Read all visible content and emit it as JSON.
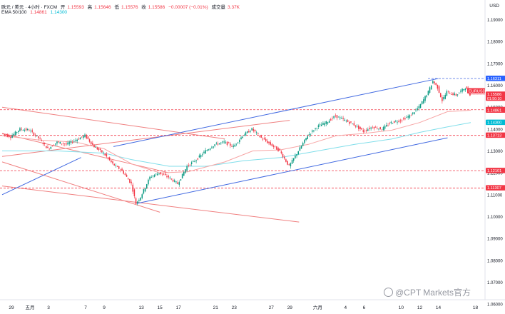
{
  "header": {
    "symbol": "欧元 / 美元 · 4小时 · FXCM",
    "open_label": "开",
    "open": "1.15593",
    "high_label": "高",
    "high": "1.15646",
    "low_label": "低",
    "low": "1.15576",
    "close_label": "收",
    "close": "1.15586",
    "change": "−0.00007 (−0.01%)",
    "volume_label": "成交量",
    "volume": "3.37K",
    "ema_label": "EMA 50/100",
    "ema50": "1.14861",
    "ema100": "1.14300"
  },
  "currency_label": "USD",
  "watermark": "@CPT Markets官方",
  "colors": {
    "up": "#089981",
    "down": "#f23645",
    "ema50": "#f7a5a5",
    "ema100": "#80deea",
    "channel": "#4169e1",
    "trendline": "#f08080"
  },
  "chart_data": {
    "type": "candlestick",
    "y_axis": {
      "range": [
        1.062,
        1.199
      ],
      "ticks": [
        "1.19000",
        "1.18000",
        "1.17000",
        "1.16000",
        "1.15000",
        "1.14000",
        "1.13000",
        "1.12000",
        "1.11000",
        "1.10000",
        "1.09000",
        "1.08000",
        "1.07000",
        "1.06000"
      ]
    },
    "x_axis": {
      "range_days": [
        0,
        50.5
      ],
      "ticks": [
        {
          "label": "29",
          "day": 1
        },
        {
          "label": "五月",
          "day": 3
        },
        {
          "label": "3",
          "day": 5
        },
        {
          "label": "7",
          "day": 9
        },
        {
          "label": "9",
          "day": 11
        },
        {
          "label": "13",
          "day": 15
        },
        {
          "label": "15",
          "day": 17
        },
        {
          "label": "17",
          "day": 19
        },
        {
          "label": "21",
          "day": 23
        },
        {
          "label": "23",
          "day": 25
        },
        {
          "label": "27",
          "day": 29
        },
        {
          "label": "29",
          "day": 31
        },
        {
          "label": "六月",
          "day": 34
        },
        {
          "label": "4",
          "day": 37
        },
        {
          "label": "6",
          "day": 39
        },
        {
          "label": "10",
          "day": 43
        },
        {
          "label": "12",
          "day": 45
        },
        {
          "label": "14",
          "day": 47
        },
        {
          "label": "18",
          "day": 51
        }
      ]
    },
    "price_path": [
      [
        0,
        1.138
      ],
      [
        1,
        1.1365
      ],
      [
        2,
        1.14
      ],
      [
        3,
        1.1395
      ],
      [
        4,
        1.136
      ],
      [
        5,
        1.131
      ],
      [
        6,
        1.134
      ],
      [
        7,
        1.133
      ],
      [
        8,
        1.135
      ],
      [
        9,
        1.137
      ],
      [
        10,
        1.132
      ],
      [
        11,
        1.129
      ],
      [
        12,
        1.124
      ],
      [
        13,
        1.121
      ],
      [
        14,
        1.115
      ],
      [
        14.5,
        1.106
      ],
      [
        15,
        1.109
      ],
      [
        16,
        1.118
      ],
      [
        17,
        1.12
      ],
      [
        18,
        1.118
      ],
      [
        19,
        1.115
      ],
      [
        20,
        1.123
      ],
      [
        21,
        1.126
      ],
      [
        22,
        1.13
      ],
      [
        23,
        1.133
      ],
      [
        24,
        1.134
      ],
      [
        25,
        1.132
      ],
      [
        26,
        1.137
      ],
      [
        27,
        1.14
      ],
      [
        28,
        1.136
      ],
      [
        29,
        1.133
      ],
      [
        30,
        1.13
      ],
      [
        31,
        1.123
      ],
      [
        32,
        1.13
      ],
      [
        33,
        1.137
      ],
      [
        34,
        1.141
      ],
      [
        35,
        1.143
      ],
      [
        36,
        1.146
      ],
      [
        37,
        1.144
      ],
      [
        38,
        1.142
      ],
      [
        39,
        1.139
      ],
      [
        40,
        1.141
      ],
      [
        41,
        1.14
      ],
      [
        42,
        1.143
      ],
      [
        43,
        1.144
      ],
      [
        44,
        1.146
      ],
      [
        45,
        1.15
      ],
      [
        46,
        1.157
      ],
      [
        46.5,
        1.162
      ],
      [
        47,
        1.159
      ],
      [
        47.5,
        1.153
      ],
      [
        48,
        1.157
      ],
      [
        49,
        1.1555
      ],
      [
        50,
        1.159
      ],
      [
        50.5,
        1.1559
      ]
    ],
    "ema50_path": [
      [
        0,
        1.137
      ],
      [
        4,
        1.135
      ],
      [
        8,
        1.134
      ],
      [
        11,
        1.131
      ],
      [
        14,
        1.124
      ],
      [
        17,
        1.12
      ],
      [
        20,
        1.1205
      ],
      [
        24,
        1.125
      ],
      [
        27,
        1.13
      ],
      [
        30,
        1.1305
      ],
      [
        33,
        1.133
      ],
      [
        36,
        1.137
      ],
      [
        39,
        1.138
      ],
      [
        42,
        1.1395
      ],
      [
        45,
        1.143
      ],
      [
        48,
        1.148
      ],
      [
        50.5,
        1.1486
      ]
    ],
    "ema100_path": [
      [
        0,
        1.13
      ],
      [
        6,
        1.13
      ],
      [
        11,
        1.129
      ],
      [
        14,
        1.126
      ],
      [
        18,
        1.123
      ],
      [
        22,
        1.123
      ],
      [
        26,
        1.1255
      ],
      [
        30,
        1.127
      ],
      [
        34,
        1.13
      ],
      [
        38,
        1.133
      ],
      [
        42,
        1.1355
      ],
      [
        45,
        1.1385
      ],
      [
        48,
        1.141
      ],
      [
        50.5,
        1.143
      ]
    ],
    "channel_lines": [
      {
        "from": [
          12,
          1.132
        ],
        "to": [
          47,
          1.1631
        ]
      },
      {
        "from": [
          14.5,
          1.106
        ],
        "to": [
          48,
          1.136
        ]
      },
      {
        "from": [
          0,
          1.11
        ],
        "to": [
          8.5,
          1.127
        ]
      }
    ],
    "trend_lines": [
      {
        "from": [
          0,
          1.15
        ],
        "to": [
          24,
          1.1355
        ]
      },
      {
        "from": [
          0,
          1.138
        ],
        "to": [
          18,
          1.12
        ]
      },
      {
        "from": [
          0,
          1.125
        ],
        "to": [
          17,
          1.102
        ]
      },
      {
        "from": [
          0,
          1.114
        ],
        "to": [
          32,
          1.0975
        ]
      },
      {
        "from": [
          0,
          1.1275
        ],
        "to": [
          31,
          1.144
        ]
      }
    ],
    "horizontal_levels": [
      {
        "value": "1.16311",
        "color": "#4169e1",
        "dashed": true
      },
      {
        "value": "1.14884",
        "color": "#f23645",
        "dashed": true
      },
      {
        "value": "1.13713",
        "color": "#f23645",
        "dashed": true
      },
      {
        "value": "1.12101",
        "color": "#f23645",
        "dashed": true
      },
      {
        "value": "1.11307",
        "color": "#f23645",
        "dashed": true
      }
    ],
    "price_labels": [
      {
        "text": "1.16311",
        "value": 1.16311,
        "bg": "#2962ff"
      },
      {
        "text": "EURUSD",
        "value": 1.1574,
        "bg": "#f23645",
        "kind": "symbol"
      },
      {
        "text": "1.15586",
        "sub": "01:50:10",
        "value": 1.15586,
        "bg": "#f23645",
        "kind": "last"
      },
      {
        "text": "1.14884",
        "value": 1.14884,
        "bg": "#f23645"
      },
      {
        "text": "1.14861",
        "value": 1.14861,
        "bg": "#f23645"
      },
      {
        "text": "1.14300",
        "value": 1.143,
        "bg": "#00bcd4"
      },
      {
        "text": "1.13713",
        "value": 1.13713,
        "bg": "#f23645"
      },
      {
        "text": "1.12101",
        "value": 1.12101,
        "bg": "#f23645"
      },
      {
        "text": "1.11307",
        "value": 1.11307,
        "bg": "#f23645"
      }
    ],
    "last_price": "1.15586"
  }
}
